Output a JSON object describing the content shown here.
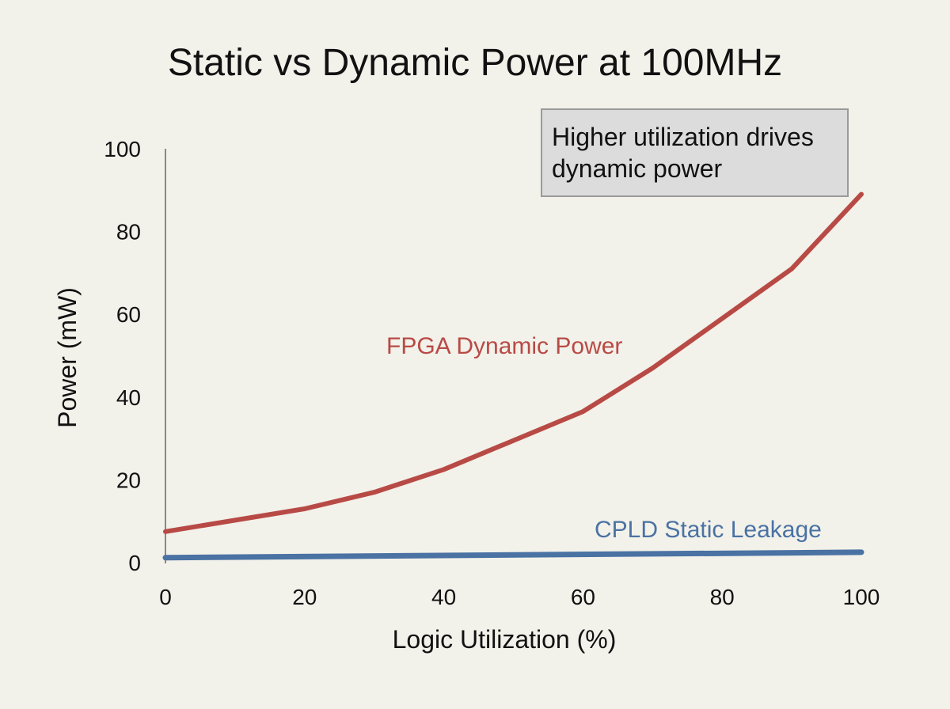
{
  "chart_data": {
    "type": "line",
    "title": "Static vs Dynamic Power at 100MHz",
    "xlabel": "Logic Utilization (%)",
    "ylabel": "Power (mW)",
    "xlim": [
      0,
      100
    ],
    "ylim": [
      0,
      100
    ],
    "x_ticks": [
      "0",
      "20",
      "40",
      "60",
      "80",
      "100"
    ],
    "y_ticks": [
      "0",
      "20",
      "40",
      "60",
      "80",
      "100"
    ],
    "grid": false,
    "series": [
      {
        "name": "FPGA Dynamic Power",
        "color": "#b84a45",
        "x": [
          0,
          20,
          30,
          40,
          60,
          70,
          90,
          100
        ],
        "y": [
          7.5,
          13,
          17,
          22.5,
          36.5,
          47,
          71,
          89
        ]
      },
      {
        "name": "CPLD Static Leakage",
        "color": "#4a72a3",
        "x": [
          0,
          100
        ],
        "y": [
          1.2,
          2.5
        ]
      }
    ],
    "annotation": {
      "line1": "Higher utilization drives",
      "line2": "dynamic power"
    }
  }
}
